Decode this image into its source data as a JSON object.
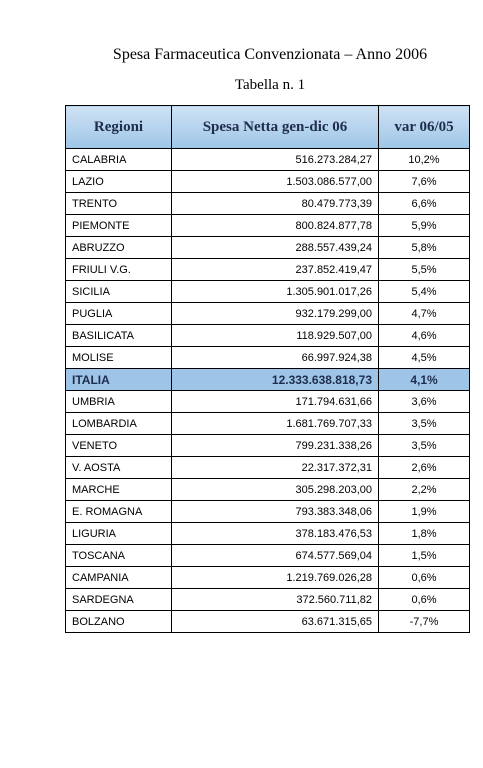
{
  "header": {
    "title": "Spesa Farmaceutica Convenzionata – Anno 2006",
    "subtitle": "Tabella n. 1"
  },
  "table": {
    "columns": [
      "Regioni",
      "Spesa Netta gen-dic 06",
      "var 06/05"
    ],
    "rows": [
      [
        "CALABRIA",
        "516.273.284,27",
        "10,2%"
      ],
      [
        "LAZIO",
        "1.503.086.577,00",
        "7,6%"
      ],
      [
        "TRENTO",
        "80.479.773,39",
        "6,6%"
      ],
      [
        "PIEMONTE",
        "800.824.877,78",
        "5,9%"
      ],
      [
        "ABRUZZO",
        "288.557.439,24",
        "5,8%"
      ],
      [
        "FRIULI V.G.",
        "237.852.419,47",
        "5,5%"
      ],
      [
        "SICILIA",
        "1.305.901.017,26",
        "5,4%"
      ],
      [
        "PUGLIA",
        "932.179.299,00",
        "4,7%"
      ],
      [
        "BASILICATA",
        "118.929.507,00",
        "4,6%"
      ],
      [
        "MOLISE",
        "66.997.924,38",
        "4,5%"
      ],
      [
        "ITALIA",
        "12.333.638.818,73",
        "4,1%"
      ],
      [
        "UMBRIA",
        "171.794.631,66",
        "3,6%"
      ],
      [
        "LOMBARDIA",
        "1.681.769.707,33",
        "3,5%"
      ],
      [
        "VENETO",
        "799.231.338,26",
        "3,5%"
      ],
      [
        "V. AOSTA",
        "22.317.372,31",
        "2,6%"
      ],
      [
        "MARCHE",
        "305.298.203,00",
        "2,2%"
      ],
      [
        "E. ROMAGNA",
        "793.383.348,06",
        "1,9%"
      ],
      [
        "LIGURIA",
        "378.183.476,53",
        "1,8%"
      ],
      [
        "TOSCANA",
        "674.577.569,04",
        "1,5%"
      ],
      [
        "CAMPANIA",
        "1.219.769.026,28",
        "0,6%"
      ],
      [
        "SARDEGNA",
        "372.560.711,82",
        "0,6%"
      ],
      [
        "BOLZANO",
        "63.671.315,65",
        "-7,7%"
      ]
    ]
  }
}
